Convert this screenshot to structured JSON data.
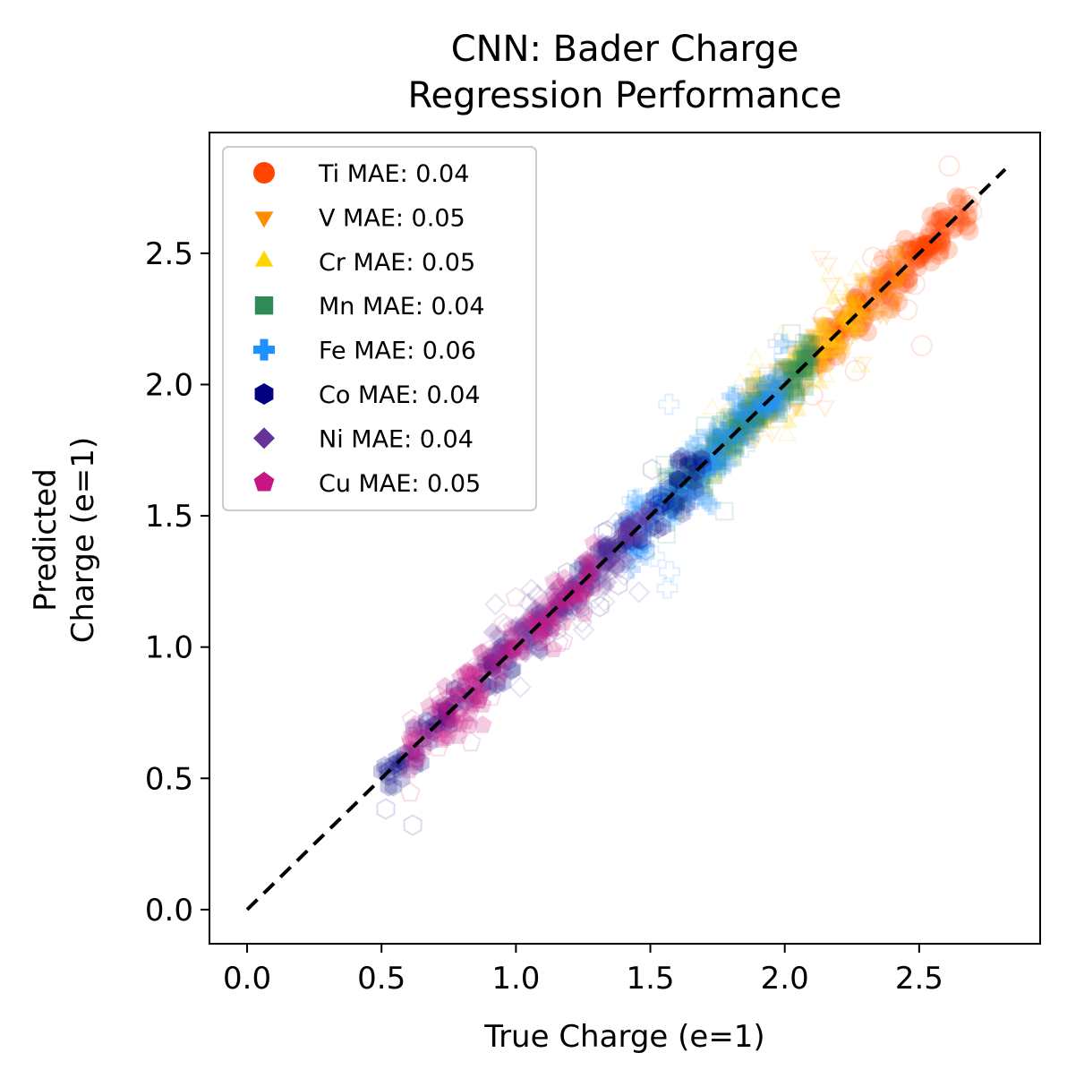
{
  "chart_data": {
    "type": "scatter",
    "title": [
      "CNN: Bader Charge",
      "Regression Performance"
    ],
    "xlabel": "True Charge (e=1)",
    "ylabel": [
      "Predicted",
      "Charge (e=1)"
    ],
    "xlim": [
      -0.14,
      2.95
    ],
    "ylim": [
      -0.13,
      2.96
    ],
    "xticks": [
      "0.0",
      "0.5",
      "1.0",
      "1.5",
      "2.0",
      "2.5"
    ],
    "yticks": [
      "0.0",
      "0.5",
      "1.0",
      "1.5",
      "2.0",
      "2.5"
    ],
    "grid": false,
    "legend_position": "upper-left",
    "reference_line": {
      "style": "dashed",
      "color": "#000000",
      "from": [
        0,
        0
      ],
      "to": [
        2.82,
        2.82
      ]
    },
    "series": [
      {
        "name": "Ti MAE: 0.04",
        "element": "Ti",
        "mae": 0.04,
        "marker": "circle",
        "color": "#ff4500",
        "range": [
          2.1,
          2.7
        ]
      },
      {
        "name": "V MAE: 0.05",
        "element": "V",
        "mae": 0.05,
        "marker": "triangle-down",
        "color": "#ff8c00",
        "range": [
          1.85,
          2.45
        ]
      },
      {
        "name": "Cr MAE: 0.05",
        "element": "Cr",
        "mae": 0.05,
        "marker": "triangle-up",
        "color": "#ffd700",
        "range": [
          1.7,
          2.3
        ]
      },
      {
        "name": "Mn MAE: 0.04",
        "element": "Mn",
        "mae": 0.04,
        "marker": "square",
        "color": "#2e8b57",
        "range": [
          1.55,
          2.1
        ]
      },
      {
        "name": "Fe MAE: 0.06",
        "element": "Fe",
        "mae": 0.06,
        "marker": "plus",
        "color": "#1e90ff",
        "range": [
          1.4,
          2.0
        ]
      },
      {
        "name": "Co MAE: 0.04",
        "element": "Co",
        "mae": 0.04,
        "marker": "hexagon",
        "color": "#000080",
        "range": [
          0.5,
          1.7
        ]
      },
      {
        "name": "Ni MAE: 0.04",
        "element": "Ni",
        "mae": 0.04,
        "marker": "diamond",
        "color": "#663399",
        "range": [
          0.9,
          1.5
        ]
      },
      {
        "name": "Cu MAE: 0.05",
        "element": "Cu",
        "mae": 0.05,
        "marker": "pentagon",
        "color": "#c71585",
        "range": [
          0.6,
          1.3
        ]
      }
    ]
  }
}
